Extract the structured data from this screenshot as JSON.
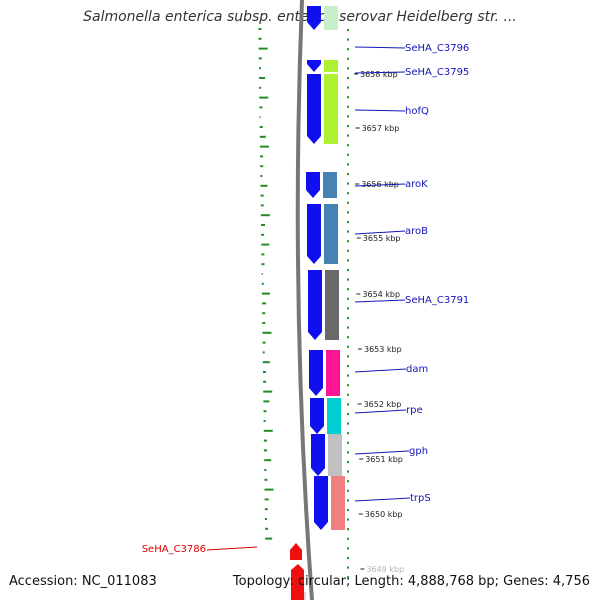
{
  "title": "Salmonella enterica subsp. enterica serovar Heidelberg str. ...",
  "colors": {
    "backbone": "#777777",
    "forward_gene": "#1010ee",
    "reverse_gene": "#ee1010",
    "tick": "#228b22",
    "label_blue": "#1515bb",
    "label_red": "#dd0000"
  },
  "scale_labels": [
    "3658 kbp",
    "3657 kbp",
    "3656 kbp",
    "3655 kbp",
    "3654 kbp",
    "3653 kbp",
    "3652 kbp",
    "3651 kbp",
    "3650 kbp",
    "3649 kbp"
  ],
  "genes": [
    {
      "label": "SeHA_C3796",
      "strand": "forward",
      "cog_color": "#c8f0c8"
    },
    {
      "label": "SeHA_C3795",
      "strand": "forward",
      "cog_color": "#adf230"
    },
    {
      "label": "hofQ",
      "strand": "forward",
      "cog_color": "#adf230"
    },
    {
      "label": "aroK",
      "strand": "forward",
      "cog_color": "#4682b4"
    },
    {
      "label": "aroB",
      "strand": "forward",
      "cog_color": "#4682b4"
    },
    {
      "label": "SeHA_C3791",
      "strand": "forward",
      "cog_color": "#696969"
    },
    {
      "label": "dam",
      "strand": "forward",
      "cog_color": "#ff1493"
    },
    {
      "label": "rpe",
      "strand": "forward",
      "cog_color": "#00ced1"
    },
    {
      "label": "gph",
      "strand": "forward",
      "cog_color": "#c0c0c0"
    },
    {
      "label": "trpS",
      "strand": "forward",
      "cog_color": "#f08080"
    },
    {
      "label": "SeHA_C3786",
      "strand": "reverse",
      "cog_color": "#ee1010"
    }
  ],
  "footer": {
    "accession": "Accession: NC_011083",
    "summary": "Topology: circular; Length: 4,888,768 bp; Genes: 4,756"
  }
}
